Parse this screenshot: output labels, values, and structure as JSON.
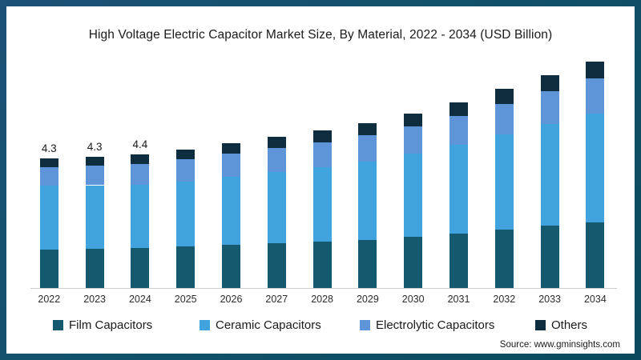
{
  "title": "High Voltage Electric Capacitor Market Size, By Material, 2022 - 2034 (USD Billion)",
  "source": "Source: www.gminsights.com",
  "chart_data": {
    "type": "bar",
    "stacked": true,
    "title": "High Voltage Electric Capacitor Market Size, By Material, 2022 - 2034 (USD Billion)",
    "unit": "USD Billion",
    "grid": false,
    "legend_position": "bottom",
    "categories": [
      "2022",
      "2023",
      "2024",
      "2025",
      "2026",
      "2027",
      "2028",
      "2029",
      "2030",
      "2031",
      "2032",
      "2033",
      "2034"
    ],
    "series": [
      {
        "name": "Film Capacitors",
        "color": "#15596f",
        "values": [
          1.26,
          1.3,
          1.32,
          1.37,
          1.43,
          1.47,
          1.53,
          1.59,
          1.7,
          1.81,
          1.93,
          2.06,
          2.18
        ]
      },
      {
        "name": "Ceramic Capacitors",
        "color": "#41a3de",
        "values": [
          2.12,
          2.1,
          2.1,
          2.16,
          2.25,
          2.36,
          2.47,
          2.6,
          2.74,
          2.93,
          3.14,
          3.36,
          3.58
        ]
      },
      {
        "name": "Electrolytic Capacitors",
        "color": "#5e94d8",
        "values": [
          0.62,
          0.64,
          0.68,
          0.73,
          0.76,
          0.79,
          0.82,
          0.86,
          0.9,
          0.95,
          1.02,
          1.09,
          1.16
        ]
      },
      {
        "name": "Others",
        "color": "#0e2e40",
        "values": [
          0.3,
          0.29,
          0.31,
          0.33,
          0.35,
          0.37,
          0.39,
          0.41,
          0.44,
          0.46,
          0.5,
          0.54,
          0.58
        ]
      }
    ],
    "bar_labels": {
      "2022": "4.3",
      "2023": "4.3",
      "2024": "4.4"
    },
    "totals": [
      4.3,
      4.33,
      4.41,
      4.59,
      4.79,
      4.99,
      5.21,
      5.46,
      5.78,
      6.15,
      6.59,
      7.05,
      7.5
    ]
  },
  "colors": {
    "frame": "#12516b",
    "axis_line": "#cccccc",
    "text": "#1a1a1a"
  }
}
